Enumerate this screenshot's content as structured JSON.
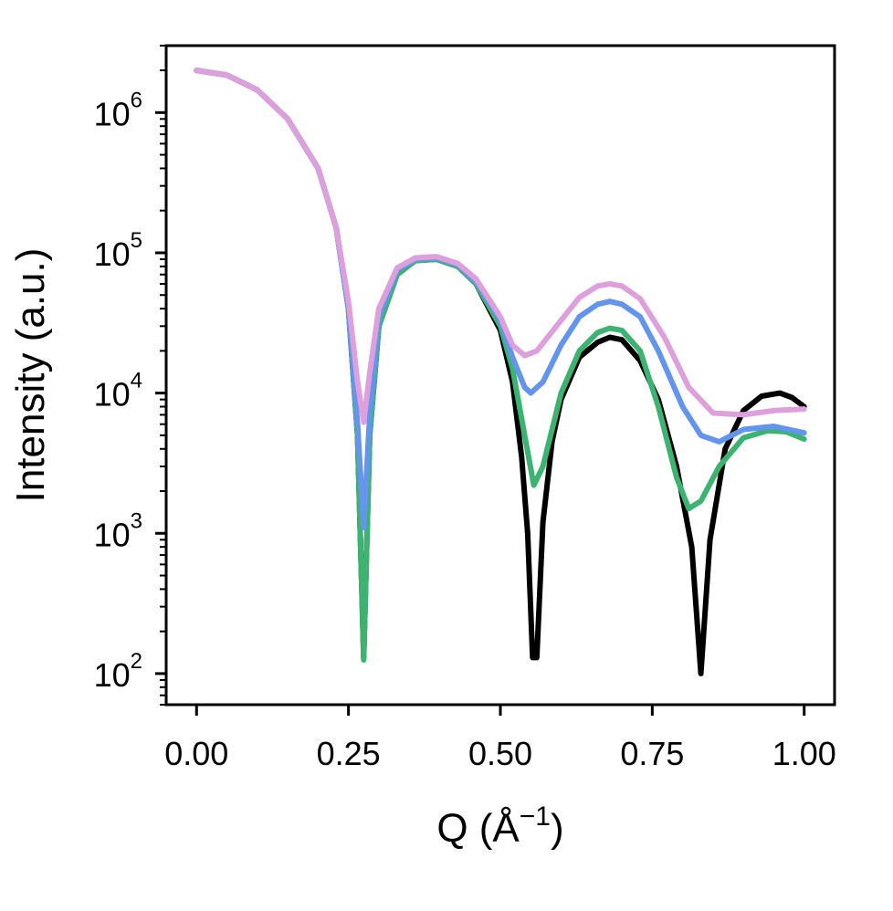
{
  "chart_data": {
    "type": "line",
    "xlabel": "Q (Å",
    "xlabel_sup": "−1",
    "xlabel_close": ")",
    "ylabel": "Intensity (a.u.)",
    "xlim": [
      -0.05,
      1.05
    ],
    "ylim": [
      60,
      3000000
    ],
    "y_scale": "log",
    "grid": false,
    "legend": "none",
    "x_ticks": [
      0.0,
      0.25,
      0.5,
      0.75,
      1.0
    ],
    "x_tick_labels": [
      "0.00",
      "0.25",
      "0.50",
      "0.75",
      "1.00"
    ],
    "y_ticks": [
      100,
      1000,
      10000,
      100000,
      1000000
    ],
    "y_tick_base": "10",
    "y_tick_exponents": [
      "2",
      "3",
      "4",
      "5",
      "6"
    ],
    "series": [
      {
        "color": "#000000",
        "points": [
          [
            0.0,
            2000000
          ],
          [
            0.05,
            1850000
          ],
          [
            0.1,
            1450000
          ],
          [
            0.15,
            900000
          ],
          [
            0.2,
            400000
          ],
          [
            0.23,
            150000
          ],
          [
            0.25,
            40000
          ],
          [
            0.265,
            5000
          ],
          [
            0.275,
            130
          ],
          [
            0.285,
            5000
          ],
          [
            0.3,
            30000
          ],
          [
            0.33,
            70000
          ],
          [
            0.36,
            88000
          ],
          [
            0.395,
            90000
          ],
          [
            0.43,
            80000
          ],
          [
            0.46,
            60000
          ],
          [
            0.5,
            28000
          ],
          [
            0.52,
            12000
          ],
          [
            0.535,
            3500
          ],
          [
            0.545,
            1000
          ],
          [
            0.553,
            130
          ],
          [
            0.56,
            130
          ],
          [
            0.57,
            1200
          ],
          [
            0.585,
            4500
          ],
          [
            0.6,
            9000
          ],
          [
            0.63,
            18000
          ],
          [
            0.66,
            23000
          ],
          [
            0.68,
            25000
          ],
          [
            0.7,
            24000
          ],
          [
            0.73,
            17000
          ],
          [
            0.76,
            9000
          ],
          [
            0.79,
            3000
          ],
          [
            0.815,
            800
          ],
          [
            0.83,
            100
          ],
          [
            0.845,
            900
          ],
          [
            0.87,
            4000
          ],
          [
            0.9,
            7500
          ],
          [
            0.93,
            9500
          ],
          [
            0.96,
            10000
          ],
          [
            0.98,
            9300
          ],
          [
            1.0,
            8000
          ]
        ]
      },
      {
        "color": "#3cb371",
        "points": [
          [
            0.0,
            2000000
          ],
          [
            0.05,
            1850000
          ],
          [
            0.1,
            1450000
          ],
          [
            0.15,
            900000
          ],
          [
            0.2,
            400000
          ],
          [
            0.23,
            150000
          ],
          [
            0.25,
            40000
          ],
          [
            0.265,
            5000
          ],
          [
            0.275,
            125
          ],
          [
            0.285,
            5000
          ],
          [
            0.3,
            30000
          ],
          [
            0.33,
            70000
          ],
          [
            0.36,
            88000
          ],
          [
            0.395,
            90000
          ],
          [
            0.43,
            80000
          ],
          [
            0.46,
            60000
          ],
          [
            0.5,
            30000
          ],
          [
            0.52,
            15000
          ],
          [
            0.54,
            5000
          ],
          [
            0.555,
            2200
          ],
          [
            0.57,
            3000
          ],
          [
            0.6,
            10000
          ],
          [
            0.63,
            20000
          ],
          [
            0.66,
            27000
          ],
          [
            0.68,
            29000
          ],
          [
            0.7,
            28000
          ],
          [
            0.73,
            20000
          ],
          [
            0.76,
            8000
          ],
          [
            0.79,
            2500
          ],
          [
            0.81,
            1500
          ],
          [
            0.83,
            1700
          ],
          [
            0.86,
            3000
          ],
          [
            0.9,
            4800
          ],
          [
            0.94,
            5400
          ],
          [
            0.97,
            5300
          ],
          [
            1.0,
            4700
          ]
        ]
      },
      {
        "color": "#6495ed",
        "points": [
          [
            0.0,
            2000000
          ],
          [
            0.05,
            1850000
          ],
          [
            0.1,
            1450000
          ],
          [
            0.15,
            900000
          ],
          [
            0.2,
            400000
          ],
          [
            0.23,
            150000
          ],
          [
            0.25,
            40000
          ],
          [
            0.265,
            6000
          ],
          [
            0.275,
            1100
          ],
          [
            0.285,
            7000
          ],
          [
            0.3,
            35000
          ],
          [
            0.33,
            75000
          ],
          [
            0.36,
            90000
          ],
          [
            0.395,
            92000
          ],
          [
            0.43,
            82000
          ],
          [
            0.46,
            62000
          ],
          [
            0.5,
            33000
          ],
          [
            0.52,
            18000
          ],
          [
            0.54,
            11000
          ],
          [
            0.55,
            10000
          ],
          [
            0.57,
            12000
          ],
          [
            0.6,
            22000
          ],
          [
            0.63,
            35000
          ],
          [
            0.66,
            43000
          ],
          [
            0.68,
            45000
          ],
          [
            0.7,
            43000
          ],
          [
            0.73,
            35000
          ],
          [
            0.76,
            20000
          ],
          [
            0.8,
            8000
          ],
          [
            0.83,
            5000
          ],
          [
            0.86,
            4500
          ],
          [
            0.9,
            5500
          ],
          [
            0.95,
            5800
          ],
          [
            1.0,
            5200
          ]
        ]
      },
      {
        "color": "#dda0dd",
        "points": [
          [
            0.0,
            2000000
          ],
          [
            0.05,
            1850000
          ],
          [
            0.1,
            1450000
          ],
          [
            0.15,
            900000
          ],
          [
            0.2,
            400000
          ],
          [
            0.23,
            150000
          ],
          [
            0.25,
            45000
          ],
          [
            0.265,
            12000
          ],
          [
            0.275,
            6200
          ],
          [
            0.285,
            14000
          ],
          [
            0.3,
            40000
          ],
          [
            0.33,
            78000
          ],
          [
            0.36,
            92000
          ],
          [
            0.395,
            94000
          ],
          [
            0.43,
            84000
          ],
          [
            0.46,
            65000
          ],
          [
            0.5,
            35000
          ],
          [
            0.52,
            22000
          ],
          [
            0.54,
            18500
          ],
          [
            0.56,
            20000
          ],
          [
            0.6,
            33000
          ],
          [
            0.63,
            48000
          ],
          [
            0.66,
            58000
          ],
          [
            0.68,
            60000
          ],
          [
            0.7,
            58000
          ],
          [
            0.73,
            47000
          ],
          [
            0.77,
            25000
          ],
          [
            0.81,
            11000
          ],
          [
            0.85,
            7200
          ],
          [
            0.9,
            7000
          ],
          [
            0.95,
            7500
          ],
          [
            1.0,
            7700
          ]
        ]
      }
    ]
  }
}
